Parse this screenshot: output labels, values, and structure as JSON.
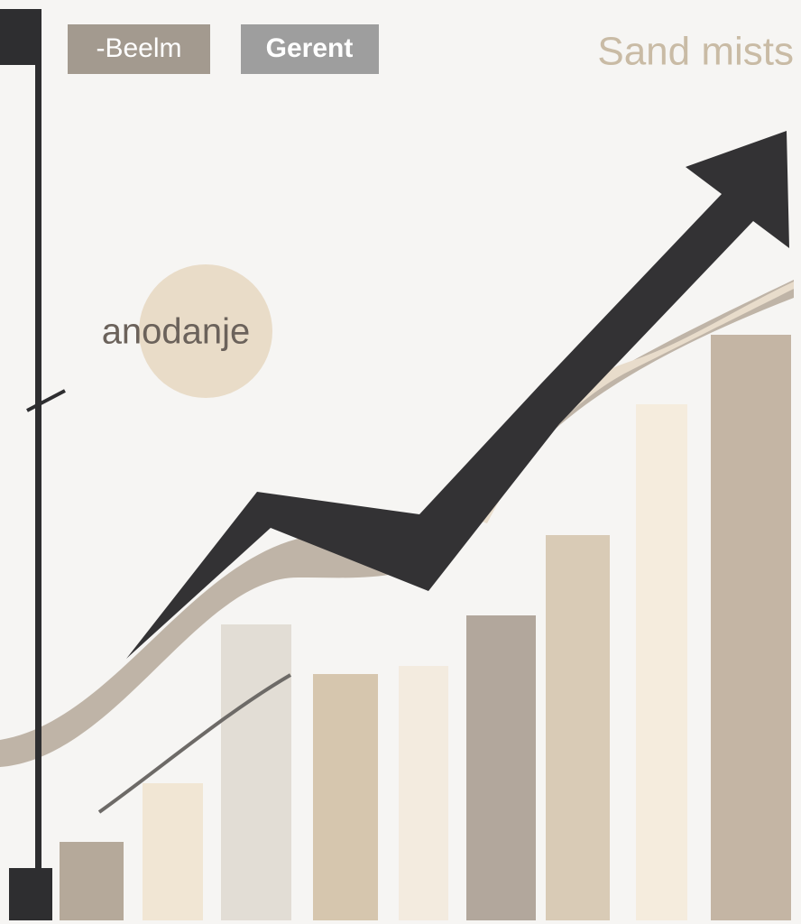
{
  "legend": {
    "items": [
      "-Beelm",
      "Gerent"
    ]
  },
  "title": "Sand mists",
  "badge": "anodanje"
}
